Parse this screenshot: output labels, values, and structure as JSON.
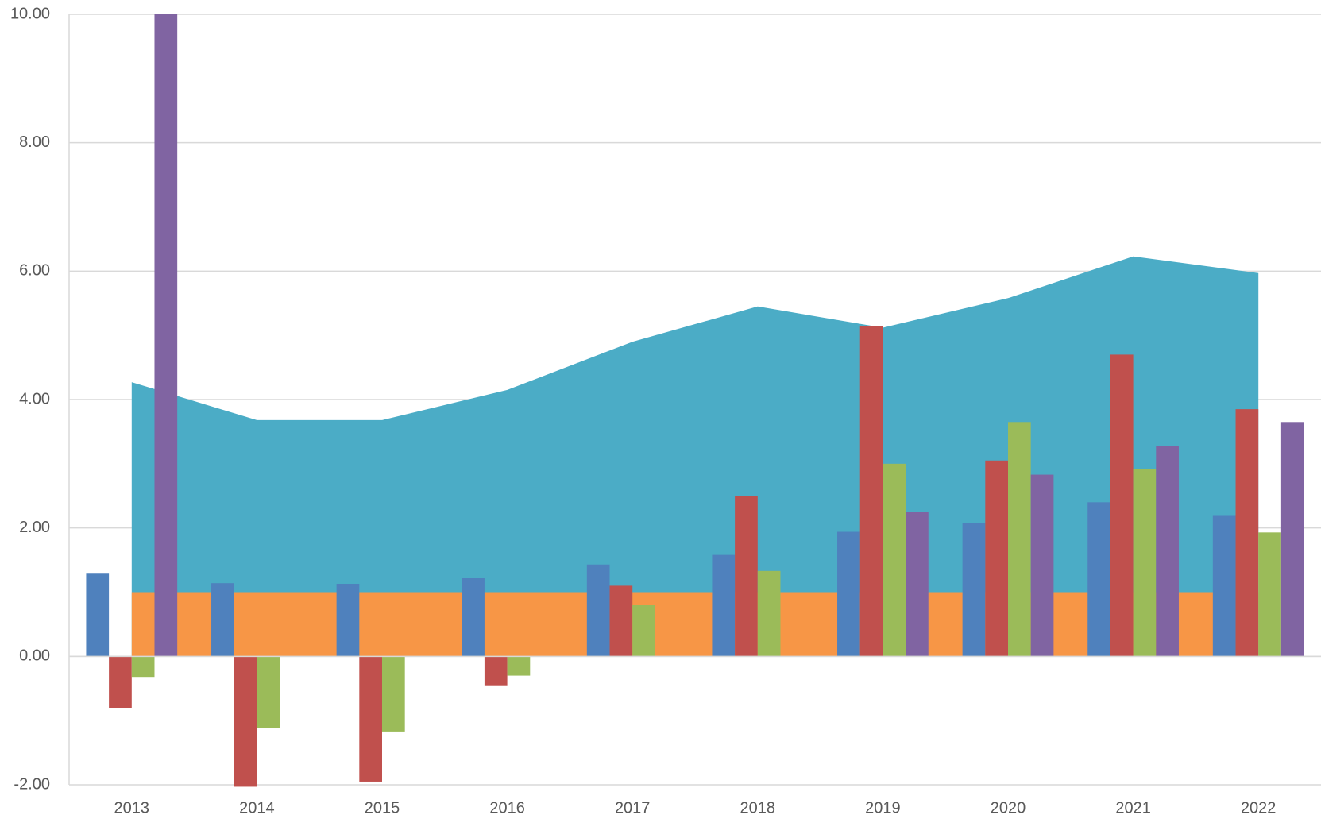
{
  "chart_data": {
    "type": "bar",
    "categories": [
      "2013",
      "2014",
      "2015",
      "2016",
      "2017",
      "2018",
      "2019",
      "2020",
      "2021",
      "2022"
    ],
    "areas": [
      {
        "color": "#4bacc6",
        "values": [
          4.27,
          3.68,
          3.68,
          4.15,
          4.9,
          5.45,
          5.12,
          5.58,
          6.23,
          5.97
        ]
      },
      {
        "color": "#f79646",
        "values": [
          1.0,
          1.0,
          1.0,
          1.0,
          1.0,
          1.0,
          1.0,
          1.0,
          1.0,
          1.0
        ]
      }
    ],
    "series": [
      {
        "color": "#4f81bd",
        "values": [
          1.3,
          1.14,
          1.13,
          1.22,
          1.43,
          1.58,
          1.94,
          2.08,
          2.4,
          2.2
        ]
      },
      {
        "color": "#c0504d",
        "values": [
          -0.8,
          -2.03,
          -1.95,
          -0.45,
          1.1,
          2.5,
          5.15,
          3.05,
          4.7,
          3.85
        ]
      },
      {
        "color": "#9bbb59",
        "values": [
          -0.32,
          -1.12,
          -1.17,
          -0.3,
          0.8,
          1.33,
          3.0,
          3.65,
          2.92,
          1.93
        ]
      },
      {
        "color": "#8064a2",
        "values": [
          10.0,
          null,
          null,
          null,
          null,
          null,
          2.25,
          2.83,
          3.27,
          3.65
        ]
      }
    ],
    "ylim": [
      -2,
      10
    ],
    "yticks": [
      {
        "value": -2,
        "label": "-2.00"
      },
      {
        "value": 0,
        "label": "0.00"
      },
      {
        "value": 2,
        "label": "2.00"
      },
      {
        "value": 4,
        "label": "4.00"
      },
      {
        "value": 6,
        "label": "6.00"
      },
      {
        "value": 8,
        "label": "8.00"
      },
      {
        "value": 10,
        "label": "10.00"
      }
    ],
    "grid": true
  }
}
